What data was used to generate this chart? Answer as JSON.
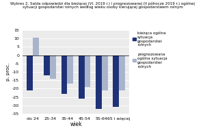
{
  "categories": [
    "do 24",
    "25-34",
    "35-44",
    "45-54",
    "55-64",
    "65 i więcej"
  ],
  "current": [
    -21,
    -12,
    -23,
    -26,
    -32,
    -31
  ],
  "forecast": [
    10.5,
    -14,
    -17,
    -19,
    -21,
    -21
  ],
  "current_color": "#1f3278",
  "forecast_color": "#a8b4cc",
  "ylabel": "p. proc.",
  "xlabel": "wiek",
  "ylim": [
    -35,
    15
  ],
  "yticks": [
    -35,
    -30,
    -25,
    -20,
    -15,
    -10,
    -5,
    0,
    5,
    10,
    15
  ],
  "legend_current": [
    "bieżąca ogólna",
    "sytuacja",
    "gospodarstwi",
    "rolnych"
  ],
  "legend_forecast": [
    "prognozowana",
    "ogólna sytuacja",
    "gospodarstwi",
    "rolnych"
  ],
  "bar_width": 0.35,
  "title": "Wykres 2. Salda odpowiedzi dla bieżącej (VI. 2019 r.) i prognozowanej (II półrocze 2019 r.) ogólnej sytuacji gospodarstwi rolnych według wieku osoby kierującej gospodarstwem rolnym"
}
